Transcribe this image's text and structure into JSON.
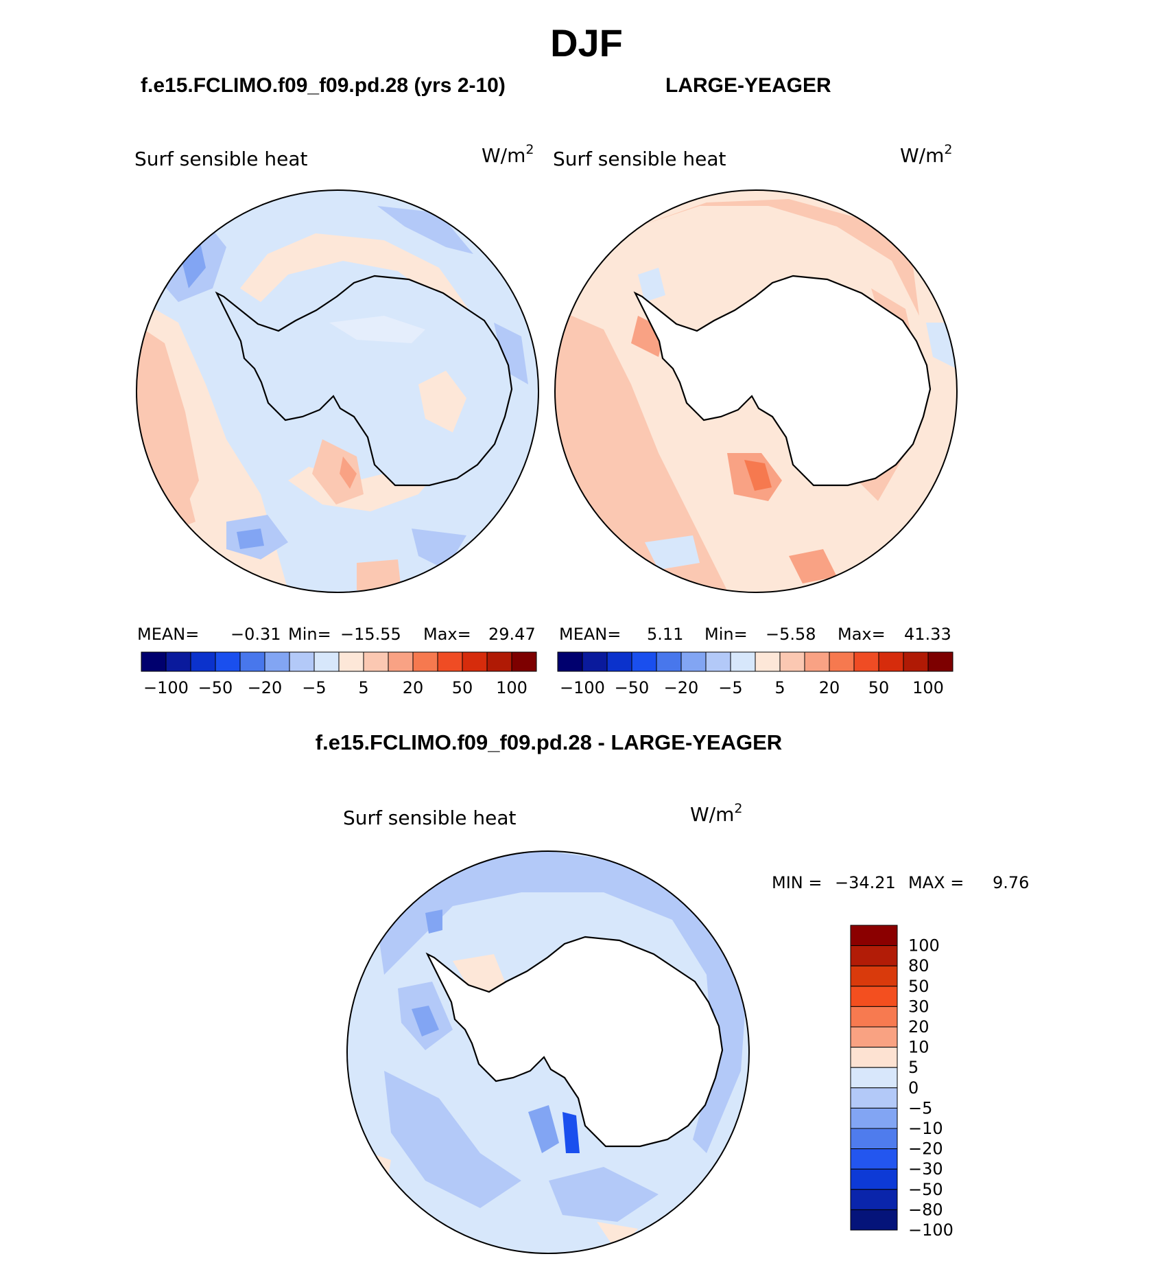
{
  "figure": {
    "season_title": "DJF",
    "case1_title": "f.e15.FCLIMO.f09_f09.pd.28 (yrs 2-10)",
    "case2_title": "LARGE-YEAGER",
    "diff_title": "f.e15.FCLIMO.f09_f09.pd.28 - LARGE-YEAGER"
  },
  "panels": [
    {
      "id": "model",
      "variable": "Surf sensible heat",
      "units": "W/m",
      "units_sup": "2",
      "stats": {
        "mean_label": "MEAN=",
        "mean": "−0.31",
        "min_label": "Min=",
        "min": "−15.55",
        "max_label": "Max=",
        "max": "29.47"
      }
    },
    {
      "id": "obs",
      "variable": "Surf sensible heat",
      "units": "W/m",
      "units_sup": "2",
      "stats": {
        "mean_label": "MEAN=",
        "mean": "5.11",
        "min_label": "Min=",
        "min": "−5.58",
        "max_label": "Max=",
        "max": "41.33"
      }
    },
    {
      "id": "diff",
      "variable": "Surf sensible heat",
      "units": "W/m",
      "units_sup": "2",
      "stats": {
        "min_label": "MIN =",
        "min": "−34.21",
        "max_label": "MAX =",
        "max": "9.76"
      }
    }
  ],
  "colorbar_top": {
    "colors": [
      "#00006e",
      "#0a1a9c",
      "#0b32cc",
      "#1a4fee",
      "#4877ec",
      "#82a5f3",
      "#b3c9f8",
      "#d7e7fb",
      "#fde7d8",
      "#fbc8b2",
      "#f9a284",
      "#f6794f",
      "#ef4c24",
      "#d62c0c",
      "#b01a05",
      "#7d0000"
    ],
    "tick_labels": [
      "−100",
      "−50",
      "−20",
      "−5",
      "5",
      "20",
      "50",
      "100"
    ]
  },
  "colorbar_diff": {
    "colors_top_to_bottom": [
      "#8b0000",
      "#b21c07",
      "#d93a0c",
      "#f34f1f",
      "#f77a50",
      "#f9a282",
      "#fde2d2",
      "#d8e7fb",
      "#b3c9f8",
      "#82a5f3",
      "#4f7ced",
      "#2356ef",
      "#0d3ad6",
      "#0a25ab",
      "#05147a"
    ],
    "tick_labels": [
      "100",
      "80",
      "50",
      "30",
      "20",
      "10",
      "5",
      "0",
      "−5",
      "−10",
      "−20",
      "−30",
      "−50",
      "−80",
      "−100"
    ]
  },
  "map_colors": {
    "ocean_model": "#d7e7fb",
    "ocean_obs": "#fbd7c2",
    "ocean_diff": "#d7e7fb",
    "land_diff": "#ffffff",
    "coast": "#000000"
  }
}
